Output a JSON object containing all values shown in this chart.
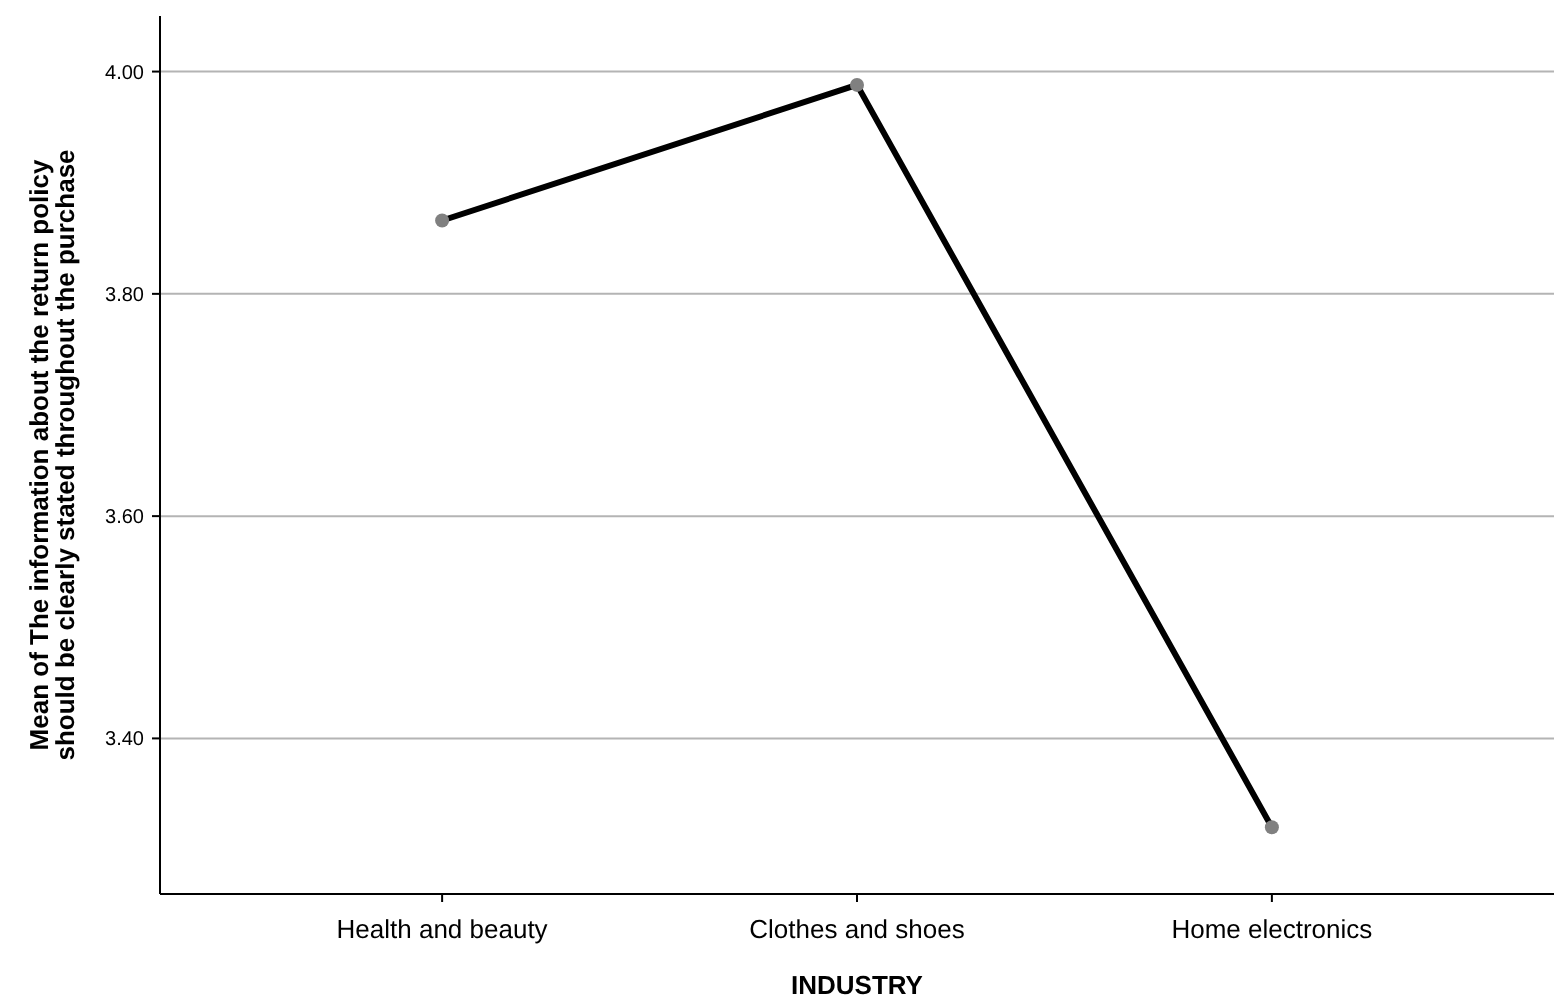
{
  "chart_data": {
    "type": "line",
    "xlabel": "INDUSTRY",
    "ylabel": "Mean of The information about the return policy should be clearly stated throughout the purchase",
    "categories": [
      "Health and beauty",
      "Clothes and shoes",
      "Home electronics"
    ],
    "series": [
      {
        "color": "#000000",
        "values": [
          3.866,
          3.988,
          3.32
        ]
      }
    ],
    "ylim": [
      3.26,
      4.05
    ],
    "yticks": [
      {
        "value": 3.4,
        "label": "3.40"
      },
      {
        "value": 3.6,
        "label": "3.60"
      },
      {
        "value": 3.8,
        "label": "3.80"
      },
      {
        "value": 4.0,
        "label": "4.00"
      }
    ],
    "grid": "y",
    "marker": "circle",
    "line_style": "solid"
  }
}
